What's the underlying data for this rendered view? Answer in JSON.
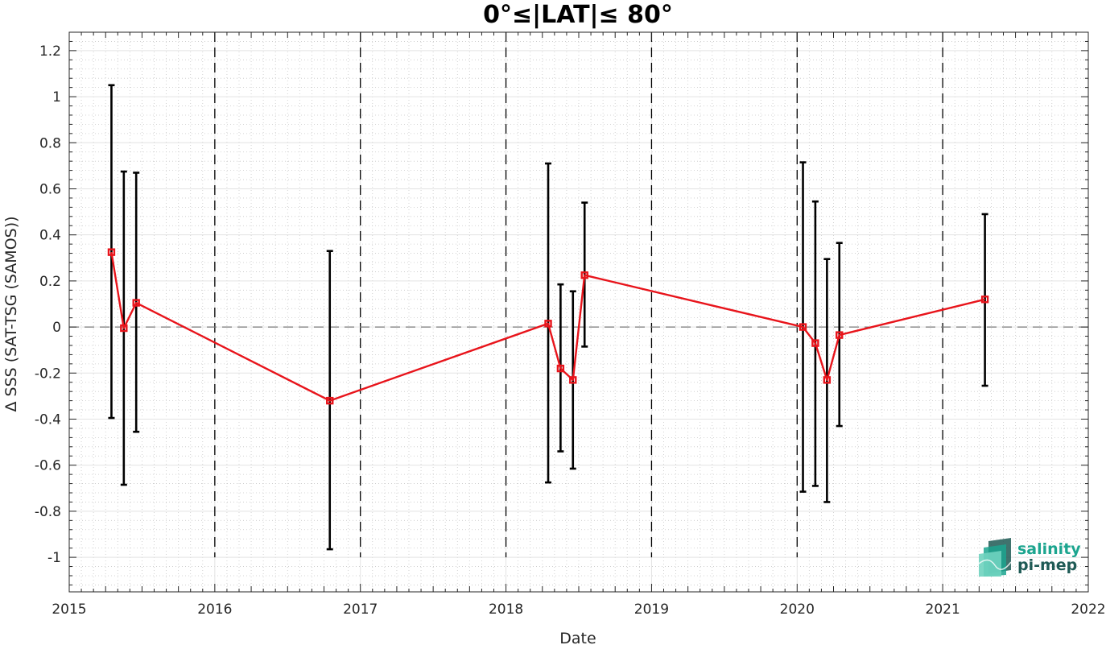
{
  "chart_data": {
    "type": "line",
    "title": "0°≤|LAT|≤ 80°",
    "xlabel": "Date",
    "ylabel": "Δ SSS (SAT-TSG (SAMOS))",
    "xlim": [
      2015,
      2022
    ],
    "ylim": [
      -1.15,
      1.28
    ],
    "x_ticks": [
      "2015",
      "2016",
      "2017",
      "2018",
      "2019",
      "2020",
      "2021",
      "2022"
    ],
    "y_ticks": [
      "1.2",
      "1",
      "0.8",
      "0.6",
      "0.4",
      "0.2",
      "0",
      "-0.2",
      "-0.4",
      "-0.6",
      "-0.8",
      "-1"
    ],
    "grid": true,
    "year_dividers": [
      2016,
      2017,
      2018,
      2019,
      2020,
      2021
    ],
    "zero_line": 0,
    "series": [
      {
        "color": "#e8141b",
        "errorbar_color": "#000000",
        "points": [
          {
            "x": 2015.29,
            "y": 0.325,
            "low": -0.395,
            "high": 1.05
          },
          {
            "x": 2015.375,
            "y": -0.005,
            "low": -0.685,
            "high": 0.675
          },
          {
            "x": 2015.46,
            "y": 0.105,
            "low": -0.455,
            "high": 0.67
          },
          {
            "x": 2016.79,
            "y": -0.32,
            "low": -0.965,
            "high": 0.33
          },
          {
            "x": 2018.29,
            "y": 0.015,
            "low": -0.675,
            "high": 0.71
          },
          {
            "x": 2018.375,
            "y": -0.18,
            "low": -0.54,
            "high": 0.185
          },
          {
            "x": 2018.46,
            "y": -0.23,
            "low": -0.615,
            "high": 0.155
          },
          {
            "x": 2018.54,
            "y": 0.225,
            "low": -0.085,
            "high": 0.54
          },
          {
            "x": 2020.04,
            "y": 0.0,
            "low": -0.715,
            "high": 0.715
          },
          {
            "x": 2020.125,
            "y": -0.07,
            "low": -0.69,
            "high": 0.545
          },
          {
            "x": 2020.205,
            "y": -0.23,
            "low": -0.76,
            "high": 0.295
          },
          {
            "x": 2020.29,
            "y": -0.035,
            "low": -0.43,
            "high": 0.365
          },
          {
            "x": 2021.29,
            "y": 0.12,
            "low": -0.255,
            "high": 0.49
          }
        ]
      }
    ]
  },
  "logo": {
    "line1": "salinity",
    "line2": "pi-mep",
    "color_primary": "#1ca58f",
    "color_secondary": "#1e5a55"
  }
}
